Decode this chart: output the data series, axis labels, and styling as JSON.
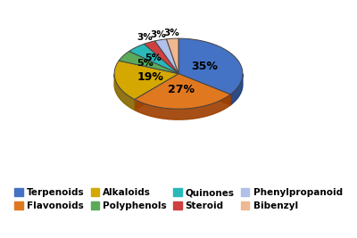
{
  "labels": [
    "Terpenoids",
    "Flavonoids",
    "Alkaloids",
    "Polyphenols",
    "Quinones",
    "Steroid",
    "Phenylpropanoid",
    "Bibenzyl"
  ],
  "values": [
    35,
    27,
    19,
    5,
    5,
    3,
    3,
    3
  ],
  "colors": [
    "#4472c4",
    "#e07820",
    "#d4a800",
    "#5aaa5a",
    "#2ab8b8",
    "#d04040",
    "#b0c0e8",
    "#f0b890"
  ],
  "dark_colors": [
    "#1a3a7a",
    "#a04000",
    "#8a6800",
    "#2a6a2a",
    "#008888",
    "#901010",
    "#708098",
    "#c07850"
  ],
  "pct_labels": [
    "35%",
    "27%",
    "19%",
    "5%",
    "5%",
    "3%",
    "3%",
    "3%"
  ],
  "startangle": 90,
  "bg_color": "#ffffff",
  "legend_fontsize": 7.5,
  "pct_fontsize": 9,
  "depth": 0.12,
  "yscale": 0.55
}
